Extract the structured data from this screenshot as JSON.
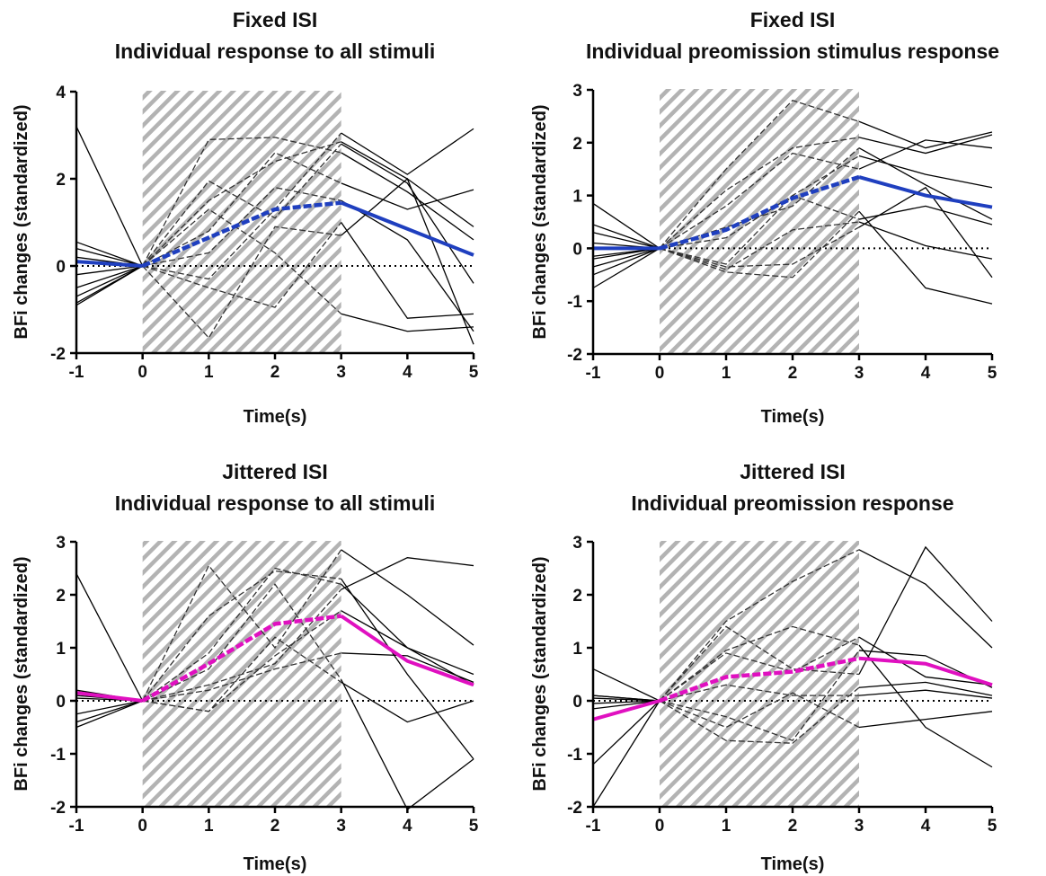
{
  "chart_data": [
    {
      "type": "line",
      "title": [
        "Fixed ISI",
        "Individual response to all stimuli"
      ],
      "xlabel": "Time(s)",
      "ylabel": "BFi changes (standardized)",
      "xlim": [
        -1,
        5
      ],
      "ylim": [
        -2,
        4
      ],
      "xticks": [
        "-1",
        "0",
        "1",
        "2",
        "3",
        "4",
        "5"
      ],
      "yticks": [
        "-2",
        "0",
        "2",
        "4"
      ],
      "stimulus_window": [
        0,
        3
      ],
      "zero_line": true,
      "mean_color": "#1f3fbf",
      "x": [
        -1,
        0,
        1,
        2,
        3,
        4,
        5
      ],
      "individual_series": [
        [
          3.2,
          0,
          2.9,
          2.95,
          2.6,
          1.7,
          0.6
        ],
        [
          0.55,
          0,
          1.95,
          1.1,
          2.8,
          1.9,
          -0.4
        ],
        [
          0.4,
          0,
          1.5,
          2.4,
          2.85,
          2.0,
          0.9
        ],
        [
          0.2,
          0,
          0.8,
          2.6,
          1.9,
          1.3,
          1.75
        ],
        [
          -0.2,
          0,
          -0.3,
          1.3,
          3.05,
          2.1,
          3.15
        ],
        [
          -0.5,
          0,
          0.3,
          1.8,
          1.5,
          0.6,
          -1.5
        ],
        [
          -0.7,
          0,
          -1.65,
          0.9,
          0.7,
          2.0,
          -1.8
        ],
        [
          -0.9,
          0,
          -0.5,
          -0.95,
          1.0,
          -1.2,
          -1.1
        ],
        [
          -0.85,
          0,
          1.3,
          0.3,
          -1.1,
          -1.5,
          -1.4
        ]
      ],
      "mean_series": [
        0.1,
        0,
        0.65,
        1.3,
        1.45,
        0.85,
        0.25
      ]
    },
    {
      "type": "line",
      "title": [
        "Fixed ISI",
        "Individual preomission stimulus response"
      ],
      "xlabel": "Time(s)",
      "ylabel": "BFi changes (standardized)",
      "xlim": [
        -1,
        5
      ],
      "ylim": [
        -2,
        3
      ],
      "xticks": [
        "-1",
        "0",
        "1",
        "2",
        "3",
        "4",
        "5"
      ],
      "yticks": [
        "-2",
        "-1",
        "0",
        "1",
        "2",
        "3"
      ],
      "stimulus_window": [
        0,
        3
      ],
      "zero_line": true,
      "mean_color": "#1f3fbf",
      "x": [
        -1,
        0,
        1,
        2,
        3,
        4,
        5
      ],
      "individual_series": [
        [
          0.85,
          0,
          1.5,
          2.8,
          2.4,
          1.9,
          2.2
        ],
        [
          0.45,
          0,
          1.1,
          1.9,
          2.1,
          1.8,
          2.15
        ],
        [
          0.3,
          0,
          0.8,
          1.8,
          1.5,
          2.05,
          1.9
        ],
        [
          0.1,
          0,
          0.2,
          1.0,
          1.75,
          1.4,
          1.15
        ],
        [
          -0.15,
          0,
          0.4,
          0.8,
          1.9,
          1.2,
          0.55
        ],
        [
          -0.35,
          0,
          -0.3,
          1.0,
          0.55,
          0.8,
          0.45
        ],
        [
          -0.5,
          0,
          -0.4,
          0.35,
          0.5,
          0.05,
          -0.2
        ],
        [
          -0.75,
          0,
          -0.45,
          -0.55,
          0.7,
          -0.75,
          -1.05
        ],
        [
          -0.2,
          0,
          -0.35,
          -0.3,
          0.4,
          1.15,
          -0.55
        ]
      ],
      "mean_series": [
        0.0,
        0,
        0.35,
        0.95,
        1.35,
        1.0,
        0.78
      ]
    },
    {
      "type": "line",
      "title": [
        "Jittered ISI",
        "Individual response to all stimuli"
      ],
      "xlabel": "Time(s)",
      "ylabel": "BFi changes (standardized)",
      "xlim": [
        -1,
        5
      ],
      "ylim": [
        -2,
        3
      ],
      "xticks": [
        "-1",
        "0",
        "1",
        "2",
        "3",
        "4",
        "5"
      ],
      "yticks": [
        "-2",
        "-1",
        "0",
        "1",
        "2",
        "3"
      ],
      "stimulus_window": [
        0,
        3
      ],
      "zero_line": true,
      "mean_color": "#e010c0",
      "x": [
        -1,
        0,
        1,
        2,
        3,
        4,
        5
      ],
      "individual_series": [
        [
          2.4,
          0,
          2.55,
          1.0,
          2.85,
          2.0,
          1.05
        ],
        [
          0.2,
          0,
          0.9,
          2.5,
          2.2,
          1.0,
          0.3
        ],
        [
          0.15,
          0,
          1.6,
          2.45,
          2.3,
          0.5,
          -1.1
        ],
        [
          -0.25,
          0,
          0.6,
          2.2,
          0.4,
          -2.05,
          -1.1
        ],
        [
          -0.4,
          0,
          0.3,
          0.7,
          2.1,
          2.7,
          2.55
        ],
        [
          -0.5,
          0,
          -0.2,
          1.2,
          0.35,
          -0.4,
          0.0
        ],
        [
          0.05,
          0,
          -0.2,
          0.85,
          1.7,
          1.0,
          0.5
        ],
        [
          0.1,
          0,
          0.2,
          0.6,
          0.9,
          0.85,
          0.35
        ]
      ],
      "mean_series": [
        0.15,
        0,
        0.7,
        1.45,
        1.6,
        0.75,
        0.3
      ]
    },
    {
      "type": "line",
      "title": [
        "Jittered ISI",
        "Individual preomission response"
      ],
      "xlabel": "Time(s)",
      "ylabel": "BFi changes (standardized)",
      "xlim": [
        -1,
        5
      ],
      "ylim": [
        -2,
        3
      ],
      "xticks": [
        "-1",
        "0",
        "1",
        "2",
        "3",
        "4",
        "5"
      ],
      "yticks": [
        "-2",
        "-1",
        "0",
        "1",
        "2",
        "3"
      ],
      "stimulus_window": [
        0,
        3
      ],
      "zero_line": true,
      "mean_color": "#e010c0",
      "x": [
        -1,
        0,
        1,
        2,
        3,
        4,
        5
      ],
      "individual_series": [
        [
          0.6,
          0,
          1.5,
          2.25,
          2.85,
          2.2,
          1.0
        ],
        [
          0.1,
          0,
          1.4,
          0.6,
          0.5,
          2.9,
          1.5
        ],
        [
          -0.05,
          0,
          0.95,
          1.4,
          1.05,
          -0.5,
          -1.25
        ],
        [
          -1.2,
          0,
          0.9,
          0.55,
          1.2,
          0.45,
          0.3
        ],
        [
          -2.0,
          0,
          -0.5,
          0.15,
          -0.5,
          -0.35,
          -0.2
        ],
        [
          0.05,
          0,
          -0.3,
          -0.75,
          0.95,
          0.85,
          0.25
        ],
        [
          0.1,
          0,
          -0.75,
          -0.8,
          0.25,
          0.35,
          0.1
        ],
        [
          -0.15,
          0,
          0.3,
          0.1,
          0.1,
          0.2,
          0.05
        ]
      ],
      "mean_series": [
        -0.35,
        0,
        0.45,
        0.55,
        0.8,
        0.7,
        0.3
      ]
    }
  ]
}
